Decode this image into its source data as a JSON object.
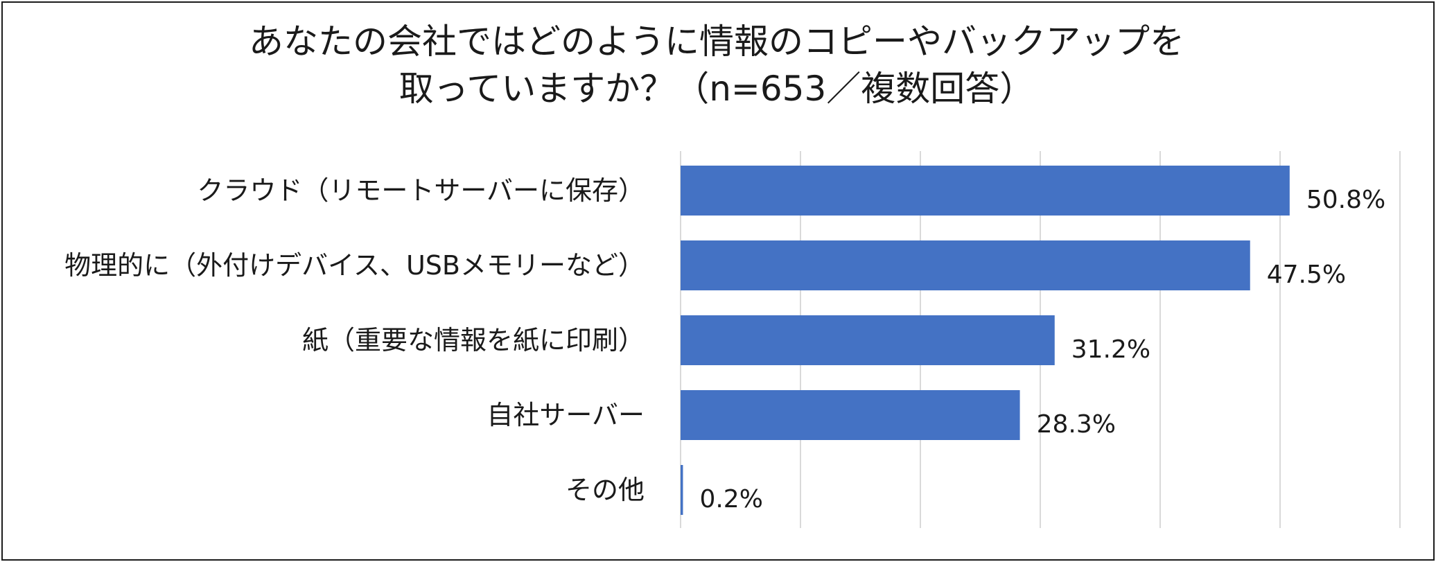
{
  "chart_data": {
    "type": "bar",
    "orientation": "horizontal",
    "title_lines": [
      "あなたの会社ではどのように情報のコピーやバックアップを",
      "取っていますか？（n=653／複数回答）"
    ],
    "categories": [
      "クラウド（リモートサーバーに保存）",
      "物理的に（外付けデバイス、USBメモリーなど）",
      "紙（重要な情報を紙に印刷）",
      "自社サーバー",
      "その他"
    ],
    "values": [
      50.8,
      47.5,
      31.2,
      28.3,
      0.2
    ],
    "value_labels": [
      "50.8%",
      "47.5%",
      "31.2%",
      "28.3%",
      "0.2%"
    ],
    "unit": "%",
    "xlim": [
      0,
      60
    ],
    "grid": true,
    "legend": "none",
    "colors": {
      "bar": "#4472C4",
      "grid": "#d9d9d9",
      "text": "#1a1a1a",
      "border": "#1a1a1a"
    }
  }
}
